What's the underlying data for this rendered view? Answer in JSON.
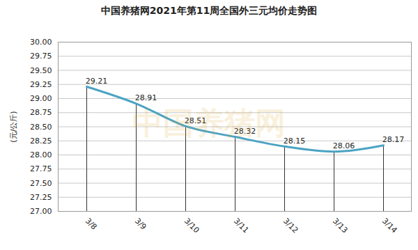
{
  "chart_data": {
    "type": "line",
    "title": "中国养猪网2021年第11周全国外三元均价走势图",
    "y_label": "(元/公斤)",
    "categories": [
      "3/8",
      "3/9",
      "3/10",
      "3/11",
      "3/12",
      "3/13",
      "3/14"
    ],
    "values": [
      29.21,
      28.91,
      28.51,
      28.32,
      28.15,
      28.06,
      28.17
    ],
    "color": "#4ba3c4",
    "ylim": [
      27,
      30
    ],
    "yticks": [
      {
        "value": 27,
        "label": "27.00"
      },
      {
        "value": 27.25,
        "label": "27.25"
      },
      {
        "value": 27.5,
        "label": "27.50"
      },
      {
        "value": 27.75,
        "label": "27.75"
      },
      {
        "value": 28,
        "label": "28.00"
      },
      {
        "value": 28.25,
        "label": "28.25"
      },
      {
        "value": 28.5,
        "label": "28.50"
      },
      {
        "value": 28.75,
        "label": "28.75"
      },
      {
        "value": 29,
        "label": "29.00"
      },
      {
        "value": 29.25,
        "label": "29.25"
      },
      {
        "value": 29.5,
        "label": "29.50"
      },
      {
        "value": 29.75,
        "label": "29.75"
      },
      {
        "value": 30,
        "label": "30.00"
      }
    ],
    "grid": true,
    "data_labels": true,
    "annotations": [
      {
        "text": "中国养猪网"
      }
    ]
  }
}
